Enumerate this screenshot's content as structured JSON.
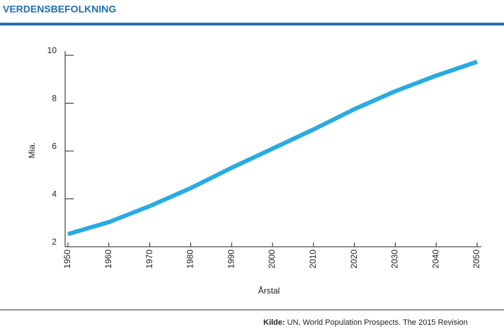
{
  "chart_data": {
    "type": "line",
    "title": "VERDENSBEFOLKNING",
    "y_label": "Mia.",
    "x_label": "Årstal",
    "source_label": "Kilde:",
    "source": "UN, World Population Prospects. The 2015 Revision",
    "x": [
      1950,
      1960,
      1970,
      1980,
      1990,
      2000,
      2010,
      2020,
      2030,
      2040,
      2050
    ],
    "series": [
      {
        "color": "#29abe2",
        "values": [
          2.53,
          3.03,
          3.7,
          4.45,
          5.3,
          6.1,
          6.9,
          7.75,
          8.5,
          9.15,
          9.73
        ]
      }
    ],
    "xlim": [
      1950,
      2050
    ],
    "xticks": [
      1950,
      1960,
      1970,
      1980,
      1990,
      2000,
      2010,
      2020,
      2030,
      2040,
      2050
    ],
    "ylim": [
      2,
      10
    ],
    "yticks": [
      2,
      4,
      6,
      8,
      10
    ]
  }
}
